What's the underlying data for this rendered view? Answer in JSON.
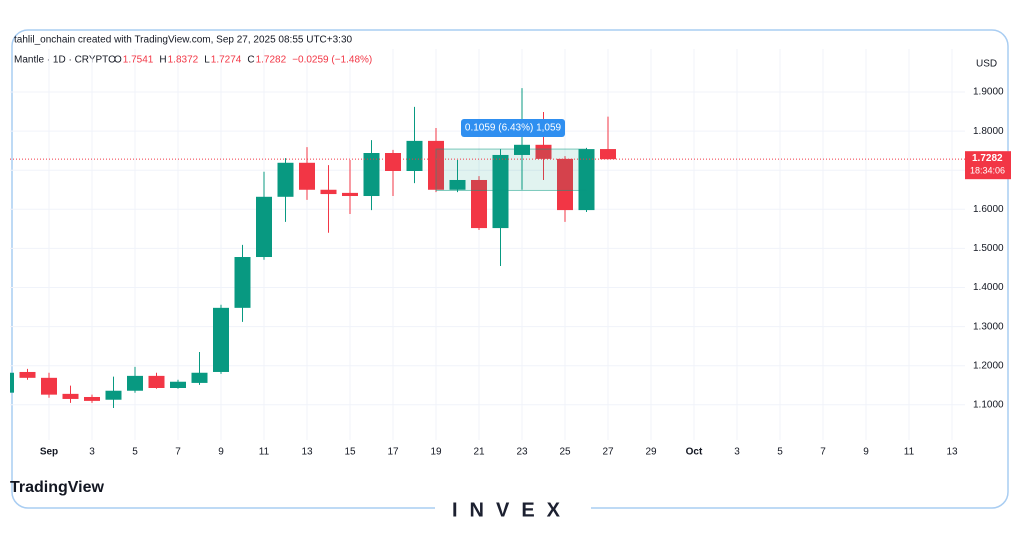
{
  "chart_data": {
    "type": "candlestick",
    "attribution": "tahlil_onchain created with TradingView.com, Sep 27, 2025 08:55 UTC+3:30",
    "symbol": "Mantle · 1D · CRYPTO",
    "legend_labels": [
      "O",
      "H",
      "L",
      "C"
    ],
    "change": "−0.0259 (−1.48%)",
    "currency": "USD",
    "countdown": "18:34:06",
    "categories": [
      null,
      null,
      "Sep",
      null,
      "3",
      null,
      "5",
      null,
      "7",
      null,
      "9",
      null,
      "11",
      null,
      "13",
      null,
      "15",
      null,
      "17",
      null,
      "19",
      null,
      "21",
      null,
      "23",
      null,
      "25",
      null,
      "27",
      null,
      "29",
      null,
      "Oct",
      null,
      "3",
      null,
      "5",
      null,
      "7",
      null,
      "9",
      null,
      "11",
      null,
      "13"
    ],
    "open": [
      1.131,
      1.184,
      1.169,
      1.128,
      1.12,
      1.113,
      1.136,
      1.174,
      1.143,
      1.156,
      1.184,
      1.348,
      1.478,
      1.632,
      1.719,
      1.65,
      1.642,
      1.634,
      1.744,
      1.698,
      1.775,
      1.65,
      1.675,
      1.552,
      1.739,
      1.765,
      1.729,
      1.598,
      1.7541,
      null,
      null,
      null,
      null,
      null,
      null,
      null,
      null,
      null,
      null,
      null,
      null,
      null,
      null,
      null,
      null
    ],
    "high": [
      1.185,
      1.192,
      1.182,
      1.149,
      1.126,
      1.172,
      1.197,
      1.182,
      1.164,
      1.235,
      1.356,
      1.509,
      1.696,
      1.731,
      1.759,
      1.713,
      1.726,
      1.777,
      1.752,
      1.862,
      1.808,
      1.726,
      1.685,
      1.754,
      1.91,
      1.849,
      1.736,
      1.757,
      1.8372,
      null,
      null,
      null,
      null,
      null,
      null,
      null,
      null,
      null,
      null,
      null,
      null,
      null,
      null,
      null,
      null
    ],
    "low": [
      1.13,
      1.164,
      1.118,
      1.105,
      1.105,
      1.092,
      1.131,
      1.141,
      1.141,
      1.151,
      1.179,
      1.312,
      1.471,
      1.568,
      1.624,
      1.54,
      1.588,
      1.598,
      1.634,
      1.667,
      1.644,
      1.644,
      1.547,
      1.455,
      1.65,
      1.675,
      1.568,
      1.593,
      1.7274,
      null,
      null,
      null,
      null,
      null,
      null,
      null,
      null,
      null,
      null,
      null,
      null,
      null,
      null,
      null,
      null
    ],
    "close": [
      1.182,
      1.169,
      1.126,
      1.115,
      1.11,
      1.136,
      1.174,
      1.143,
      1.159,
      1.182,
      1.348,
      1.478,
      1.632,
      1.719,
      1.65,
      1.639,
      1.634,
      1.744,
      1.698,
      1.775,
      1.65,
      1.675,
      1.552,
      1.739,
      1.765,
      1.729,
      1.598,
      1.754,
      1.7282,
      null,
      null,
      null,
      null,
      null,
      null,
      null,
      null,
      null,
      null,
      null,
      null,
      null,
      null,
      null,
      null
    ],
    "up_color": "#089981",
    "down_color": "#f23645",
    "ylim": [
      1.01,
      2.01
    ],
    "yticks": [
      {
        "value": 1.1,
        "label": "1.1000"
      },
      {
        "value": 1.2,
        "label": "1.2000"
      },
      {
        "value": 1.3,
        "label": "1.3000"
      },
      {
        "value": 1.4,
        "label": "1.4000"
      },
      {
        "value": 1.5,
        "label": "1.5000"
      },
      {
        "value": 1.6,
        "label": "1.6000"
      },
      {
        "value": 1.7,
        "label": "1.7000"
      },
      {
        "value": 1.8,
        "label": "1.8000"
      },
      {
        "value": 1.9,
        "label": "1.9000"
      }
    ],
    "grid": true,
    "measure": {
      "label": "0.1059 (6.43%) 1,059",
      "low": 1.6482,
      "high": 1.7541
    }
  },
  "footer": {
    "brand": "TradingView",
    "watermark": "INVEX"
  }
}
